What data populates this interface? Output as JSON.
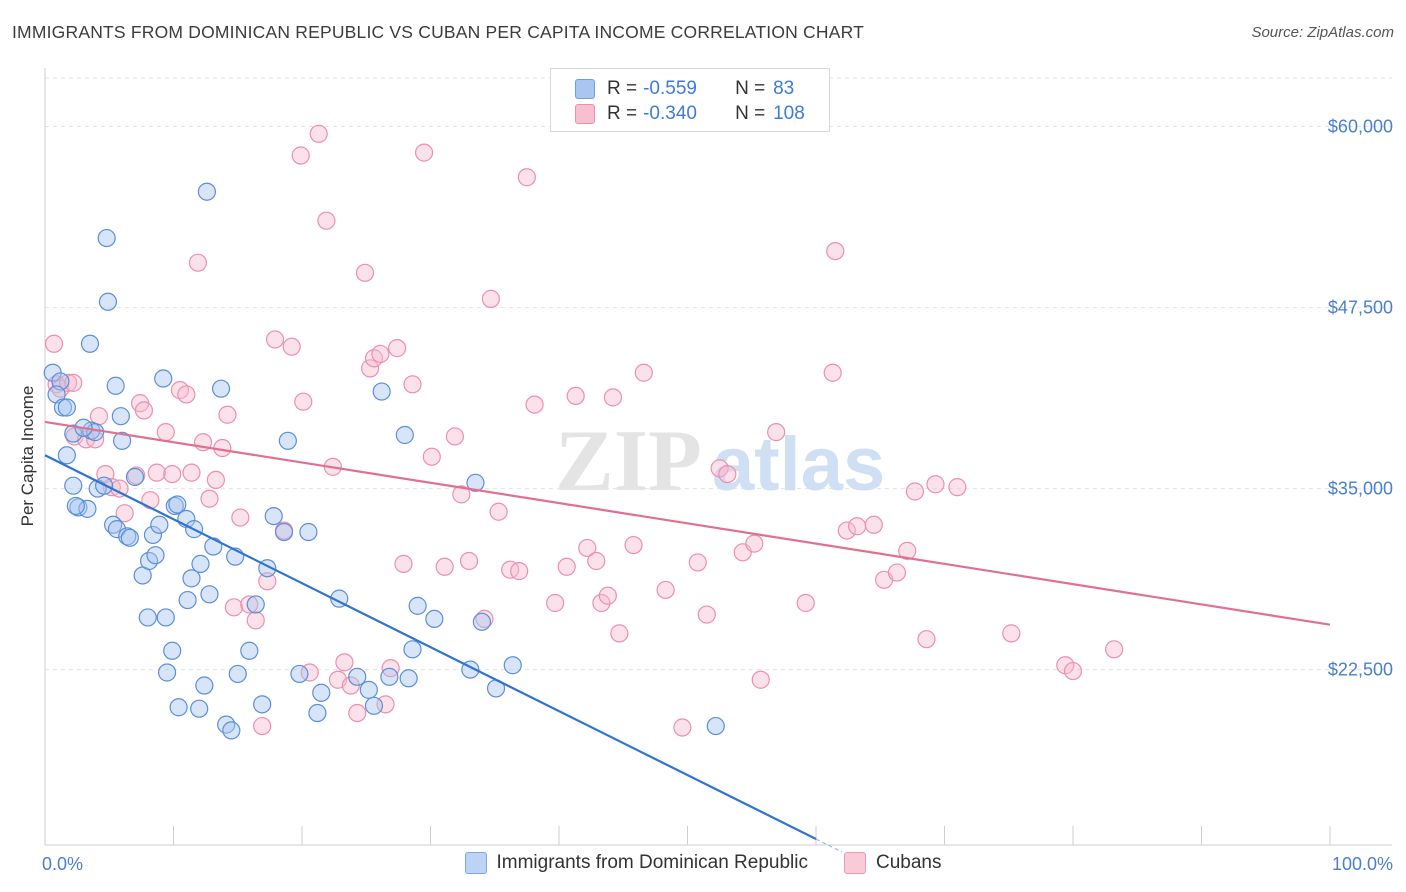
{
  "title": "IMMIGRANTS FROM DOMINICAN REPUBLIC VS CUBAN PER CAPITA INCOME CORRELATION CHART",
  "source": "Source: ZipAtlas.com",
  "watermark": {
    "zip": "ZIP",
    "atlas": "atlas"
  },
  "legend": {
    "rows": [
      {
        "r_label": "R =",
        "r_value": "-0.559",
        "n_label": "N =",
        "n_value": "83",
        "color": "#a9c6f0",
        "border": "#6f9fe0"
      },
      {
        "r_label": "R =",
        "r_value": "-0.340",
        "n_label": "N =",
        "n_value": "108",
        "color": "#f7bfd0",
        "border": "#ec8fae"
      }
    ]
  },
  "bottom_legend": {
    "series1": "Immigrants from Dominican Republic",
    "series2": "Cubans"
  },
  "chart_data": {
    "type": "scatter",
    "title": "IMMIGRANTS FROM DOMINICAN REPUBLIC VS CUBAN PER CAPITA INCOME CORRELATION CHART",
    "xlabel": "",
    "ylabel": "Per Capita Income",
    "xlim": [
      0,
      100
    ],
    "ylim": [
      10000,
      62000
    ],
    "x_tick_labels": [
      "0.0%",
      "100.0%"
    ],
    "y_ticks": [
      22500,
      35000,
      47500,
      60000
    ],
    "y_tick_labels": [
      "$22,500",
      "$35,000",
      "$47,500",
      "$60,000"
    ],
    "grid": true,
    "series": [
      {
        "name": "Immigrants from Dominican Republic",
        "color": "#a9c6f0",
        "edge": "#5b8fd8",
        "line_color": "#2f74d0",
        "trend": {
          "x0": 0,
          "y0": 37300,
          "x1": 60,
          "y1": 10800,
          "dash_to_x": 62
        },
        "points": [
          [
            0.6,
            43000
          ],
          [
            1.2,
            42400
          ],
          [
            0.9,
            41500
          ],
          [
            1.4,
            40600
          ],
          [
            1.7,
            40600
          ],
          [
            2.2,
            38800
          ],
          [
            1.7,
            37300
          ],
          [
            2.2,
            35200
          ],
          [
            2.6,
            33700
          ],
          [
            3.3,
            33600
          ],
          [
            3.6,
            39000
          ],
          [
            3.9,
            38900
          ],
          [
            3.5,
            45000
          ],
          [
            4.1,
            35000
          ],
          [
            4.6,
            35200
          ],
          [
            4.8,
            52300
          ],
          [
            4.9,
            47900
          ],
          [
            5.5,
            42100
          ],
          [
            5.9,
            40000
          ],
          [
            6.0,
            38300
          ],
          [
            5.3,
            32500
          ],
          [
            5.6,
            32200
          ],
          [
            6.4,
            31700
          ],
          [
            6.6,
            31600
          ],
          [
            7.0,
            35800
          ],
          [
            7.6,
            29000
          ],
          [
            8.1,
            30000
          ],
          [
            8.0,
            26100
          ],
          [
            8.4,
            31800
          ],
          [
            8.6,
            30400
          ],
          [
            8.9,
            32500
          ],
          [
            9.2,
            42600
          ],
          [
            9.4,
            26100
          ],
          [
            9.5,
            22300
          ],
          [
            9.9,
            23800
          ],
          [
            10.1,
            33800
          ],
          [
            10.3,
            33900
          ],
          [
            10.4,
            19900
          ],
          [
            11.0,
            32900
          ],
          [
            11.1,
            27300
          ],
          [
            11.4,
            28800
          ],
          [
            11.6,
            32200
          ],
          [
            12.0,
            19800
          ],
          [
            12.1,
            29800
          ],
          [
            12.4,
            21400
          ],
          [
            12.6,
            55500
          ],
          [
            12.8,
            27700
          ],
          [
            13.1,
            31000
          ],
          [
            13.7,
            41900
          ],
          [
            14.1,
            18700
          ],
          [
            14.5,
            18300
          ],
          [
            14.8,
            30300
          ],
          [
            15.0,
            22200
          ],
          [
            15.9,
            23800
          ],
          [
            16.4,
            27000
          ],
          [
            16.9,
            20100
          ],
          [
            17.3,
            29500
          ],
          [
            17.8,
            33100
          ],
          [
            18.6,
            32000
          ],
          [
            18.9,
            38300
          ],
          [
            19.8,
            22200
          ],
          [
            20.5,
            32000
          ],
          [
            21.2,
            19500
          ],
          [
            21.5,
            20900
          ],
          [
            22.9,
            27400
          ],
          [
            24.3,
            22000
          ],
          [
            25.2,
            21100
          ],
          [
            25.6,
            20000
          ],
          [
            26.2,
            41700
          ],
          [
            26.8,
            22000
          ],
          [
            28.0,
            38700
          ],
          [
            28.3,
            21900
          ],
          [
            28.6,
            23900
          ],
          [
            29.0,
            26900
          ],
          [
            30.3,
            26000
          ],
          [
            33.1,
            22500
          ],
          [
            33.5,
            35400
          ],
          [
            34.0,
            25800
          ],
          [
            35.1,
            21200
          ],
          [
            36.4,
            22800
          ],
          [
            52.2,
            18600
          ],
          [
            2.4,
            33800
          ],
          [
            3.0,
            39200
          ]
        ]
      },
      {
        "name": "Cubans",
        "color": "#f7bfd0",
        "edge": "#ec8fae",
        "line_color": "#e0708f",
        "trend": {
          "x0": 0,
          "y0": 39600,
          "x1": 100,
          "y1": 25600
        },
        "points": [
          [
            0.7,
            45000
          ],
          [
            0.9,
            42200
          ],
          [
            1.2,
            41900
          ],
          [
            1.8,
            42300
          ],
          [
            2.2,
            42300
          ],
          [
            2.3,
            38600
          ],
          [
            3.2,
            38400
          ],
          [
            3.9,
            38400
          ],
          [
            4.2,
            40000
          ],
          [
            4.7,
            36000
          ],
          [
            5.2,
            35100
          ],
          [
            5.8,
            35000
          ],
          [
            6.2,
            33300
          ],
          [
            7.1,
            35900
          ],
          [
            7.4,
            40900
          ],
          [
            7.7,
            40400
          ],
          [
            8.2,
            34200
          ],
          [
            8.7,
            36100
          ],
          [
            9.4,
            38900
          ],
          [
            9.9,
            36000
          ],
          [
            10.5,
            41800
          ],
          [
            11.0,
            41500
          ],
          [
            11.4,
            36100
          ],
          [
            11.9,
            50600
          ],
          [
            12.3,
            38200
          ],
          [
            12.8,
            34300
          ],
          [
            13.3,
            35600
          ],
          [
            13.8,
            37800
          ],
          [
            14.2,
            40100
          ],
          [
            14.7,
            26800
          ],
          [
            15.2,
            33000
          ],
          [
            15.9,
            27000
          ],
          [
            16.4,
            25900
          ],
          [
            16.9,
            18600
          ],
          [
            17.3,
            28600
          ],
          [
            17.9,
            45300
          ],
          [
            18.6,
            32100
          ],
          [
            19.2,
            44800
          ],
          [
            19.9,
            58000
          ],
          [
            20.1,
            41000
          ],
          [
            20.6,
            22300
          ],
          [
            21.3,
            59500
          ],
          [
            21.9,
            53500
          ],
          [
            22.4,
            36500
          ],
          [
            22.8,
            21800
          ],
          [
            23.3,
            23000
          ],
          [
            23.8,
            21400
          ],
          [
            24.3,
            19500
          ],
          [
            24.9,
            49900
          ],
          [
            25.3,
            43300
          ],
          [
            25.6,
            44000
          ],
          [
            26.1,
            44300
          ],
          [
            26.5,
            20100
          ],
          [
            26.9,
            22600
          ],
          [
            27.4,
            44700
          ],
          [
            27.9,
            29800
          ],
          [
            28.6,
            42200
          ],
          [
            29.5,
            58200
          ],
          [
            30.1,
            37200
          ],
          [
            31.1,
            29600
          ],
          [
            31.9,
            38600
          ],
          [
            32.4,
            34600
          ],
          [
            33.0,
            30000
          ],
          [
            34.2,
            26000
          ],
          [
            34.7,
            48100
          ],
          [
            35.3,
            33400
          ],
          [
            36.2,
            29400
          ],
          [
            36.9,
            29300
          ],
          [
            37.5,
            56500
          ],
          [
            38.1,
            40800
          ],
          [
            39.7,
            27100
          ],
          [
            40.6,
            29600
          ],
          [
            41.3,
            41400
          ],
          [
            42.2,
            30900
          ],
          [
            42.9,
            30000
          ],
          [
            43.3,
            27100
          ],
          [
            43.8,
            27600
          ],
          [
            44.2,
            41300
          ],
          [
            44.7,
            25000
          ],
          [
            45.8,
            31100
          ],
          [
            46.6,
            43000
          ],
          [
            48.3,
            28000
          ],
          [
            49.6,
            18500
          ],
          [
            50.8,
            29900
          ],
          [
            51.5,
            26300
          ],
          [
            52.5,
            36400
          ],
          [
            53.1,
            36000
          ],
          [
            54.3,
            30600
          ],
          [
            55.2,
            31200
          ],
          [
            55.7,
            21800
          ],
          [
            56.9,
            38900
          ],
          [
            59.2,
            27100
          ],
          [
            61.3,
            43000
          ],
          [
            61.5,
            51400
          ],
          [
            62.4,
            32100
          ],
          [
            63.2,
            32400
          ],
          [
            64.5,
            32500
          ],
          [
            65.3,
            28700
          ],
          [
            66.3,
            29200
          ],
          [
            67.1,
            30700
          ],
          [
            67.7,
            34800
          ],
          [
            68.6,
            24600
          ],
          [
            69.3,
            35300
          ],
          [
            71.0,
            35100
          ],
          [
            75.2,
            25000
          ],
          [
            79.4,
            22800
          ],
          [
            80.0,
            22400
          ],
          [
            83.2,
            23900
          ]
        ]
      }
    ]
  }
}
